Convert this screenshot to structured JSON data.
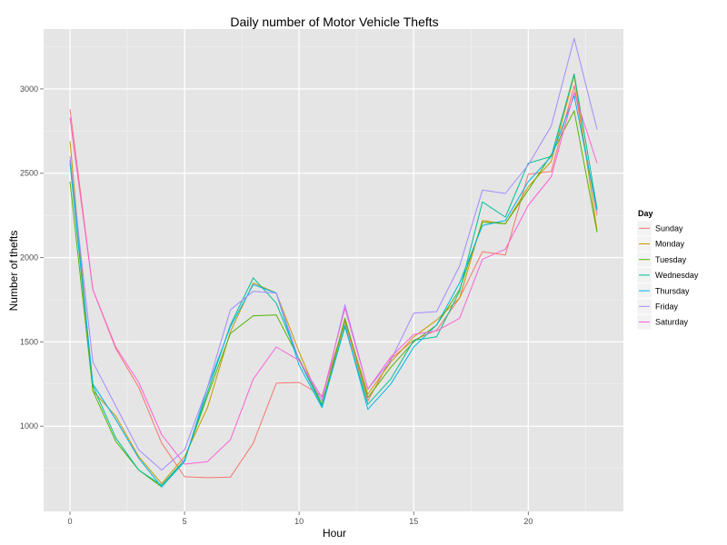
{
  "chart_data": {
    "type": "line",
    "title": "Daily number of Motor Vehicle Thefts",
    "xlabel": "Hour",
    "ylabel": "Number of thefts",
    "xlim": [
      -1.15,
      24.15
    ],
    "ylim": [
      495,
      3355
    ],
    "x_ticks": [
      0,
      5,
      10,
      15,
      20
    ],
    "y_ticks": [
      1000,
      1500,
      2000,
      2500,
      3000
    ],
    "grid": true,
    "legend": {
      "title": "Day",
      "position": "right"
    },
    "x": [
      0,
      1,
      2,
      3,
      4,
      5,
      6,
      7,
      8,
      9,
      10,
      11,
      12,
      13,
      14,
      15,
      16,
      17,
      18,
      19,
      20,
      21,
      22,
      23
    ],
    "series": [
      {
        "name": "Sunday",
        "color": "#F8766D",
        "values": [
          2880,
          1810,
          1460,
          1230,
          900,
          700,
          695,
          698,
          900,
          1255,
          1260,
          1180,
          1620,
          1150,
          1400,
          1510,
          1570,
          1760,
          2035,
          2015,
          2495,
          2510,
          3020,
          2250
        ]
      },
      {
        "name": "Monday",
        "color": "#C49A00",
        "values": [
          2690,
          1210,
          1060,
          820,
          660,
          820,
          1110,
          1560,
          1850,
          1790,
          1440,
          1120,
          1630,
          1190,
          1380,
          1530,
          1630,
          1760,
          2220,
          2200,
          2420,
          2570,
          3080,
          2160
        ]
      },
      {
        "name": "Tuesday",
        "color": "#53B400",
        "values": [
          2450,
          1210,
          910,
          740,
          640,
          800,
          1180,
          1550,
          1655,
          1660,
          1400,
          1130,
          1640,
          1170,
          1350,
          1500,
          1600,
          1810,
          2210,
          2200,
          2400,
          2610,
          2870,
          2150
        ]
      },
      {
        "name": "Wednesday",
        "color": "#00C094",
        "values": [
          2560,
          1240,
          930,
          740,
          650,
          800,
          1200,
          1600,
          1880,
          1730,
          1390,
          1120,
          1590,
          1130,
          1280,
          1510,
          1530,
          1800,
          2330,
          2240,
          2560,
          2600,
          3090,
          2290
        ]
      },
      {
        "name": "Thursday",
        "color": "#00B6EB",
        "values": [
          2580,
          1250,
          1040,
          810,
          640,
          790,
          1230,
          1590,
          1840,
          1790,
          1360,
          1110,
          1600,
          1100,
          1250,
          1470,
          1600,
          1850,
          2190,
          2220,
          2450,
          2600,
          2960,
          2280
        ]
      },
      {
        "name": "Friday",
        "color": "#A58AFF",
        "values": [
          2600,
          1380,
          1120,
          860,
          740,
          860,
          1230,
          1690,
          1800,
          1790,
          1390,
          1150,
          1720,
          1220,
          1390,
          1670,
          1680,
          1950,
          2400,
          2380,
          2550,
          2780,
          3300,
          2760
        ]
      },
      {
        "name": "Saturday",
        "color": "#FB61D7",
        "values": [
          2830,
          1810,
          1470,
          1260,
          950,
          775,
          790,
          920,
          1280,
          1470,
          1390,
          1170,
          1700,
          1220,
          1410,
          1545,
          1565,
          1640,
          1990,
          2050,
          2310,
          2480,
          2980,
          2560
        ]
      }
    ]
  }
}
